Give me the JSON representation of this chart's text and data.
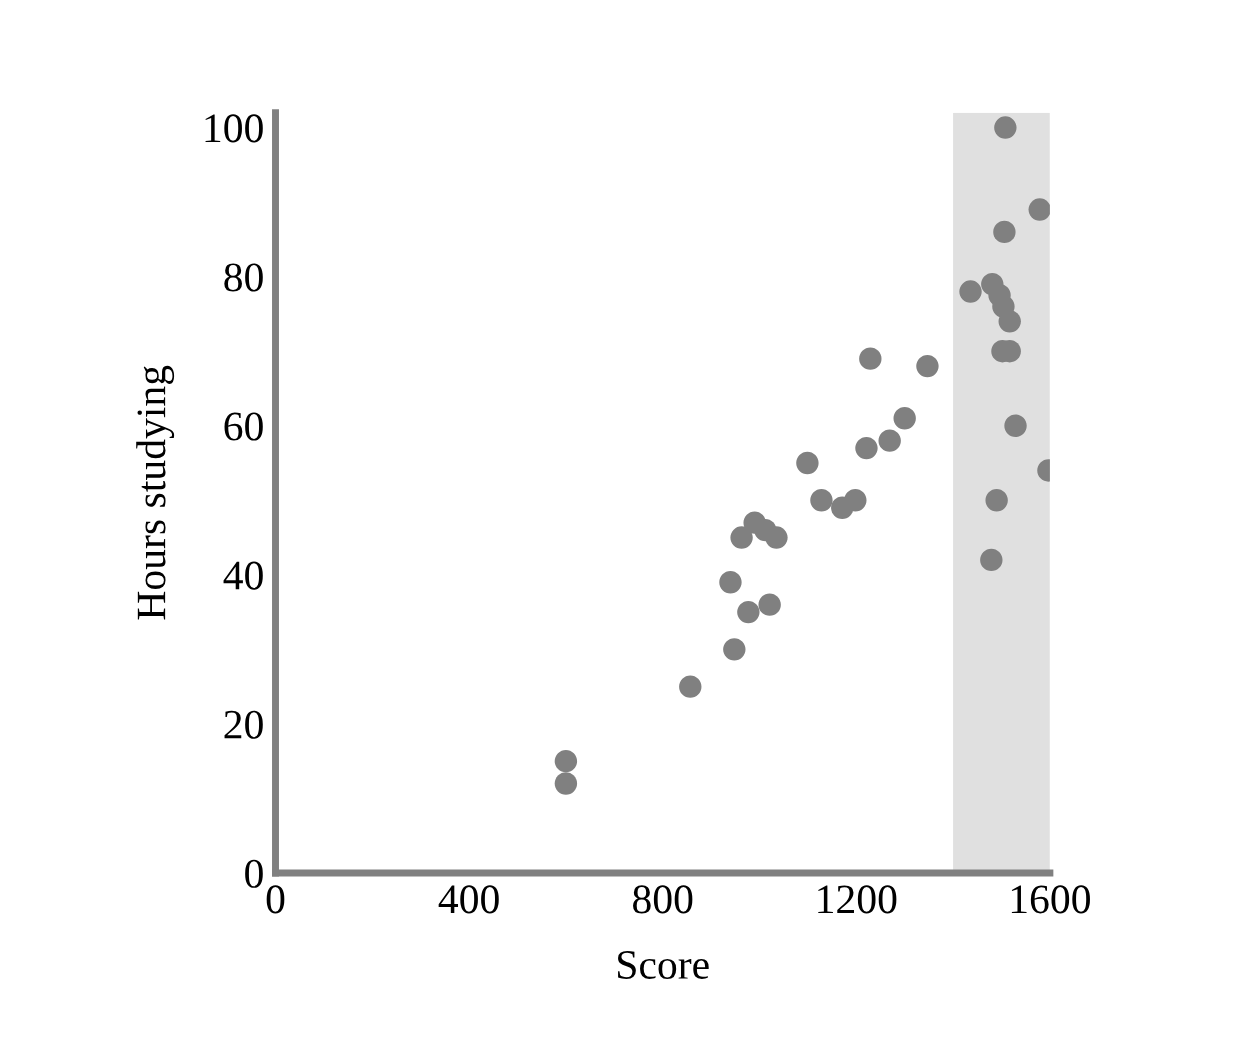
{
  "chart_data": {
    "type": "scatter",
    "xlabel": "Score",
    "ylabel": "Hours studying",
    "xlim": [
      0,
      1600
    ],
    "xticks": [
      0,
      400,
      800,
      1200,
      1600
    ],
    "ylim": [
      0,
      102
    ],
    "yticks": [
      0,
      20,
      40,
      60,
      80,
      100
    ],
    "grid": false,
    "marker": "circle",
    "bands": [
      {
        "axis": "x",
        "from": 1400,
        "to": 1600,
        "color": "#e0e0e0"
      }
    ],
    "series": [
      {
        "color": "#808080",
        "x": [
          600,
          600,
          857,
          940,
          948,
          963,
          977,
          990,
          1012,
          1021,
          1035,
          1099,
          1128,
          1171,
          1198,
          1221,
          1229,
          1269,
          1300,
          1347,
          1436,
          1479,
          1481,
          1490,
          1496,
          1502,
          1504,
          1508,
          1506,
          1510,
          1512,
          1517,
          1517,
          1529,
          1579,
          1597
        ],
        "values": [
          15,
          12,
          25,
          39,
          30,
          45,
          35,
          47,
          46,
          36,
          45,
          55,
          50,
          49,
          50,
          57,
          69,
          58,
          61,
          68,
          78,
          42,
          79,
          50,
          77.5,
          70,
          76,
          100,
          86,
          null,
          null,
          74,
          70,
          60,
          89,
          54
        ]
      }
    ]
  }
}
